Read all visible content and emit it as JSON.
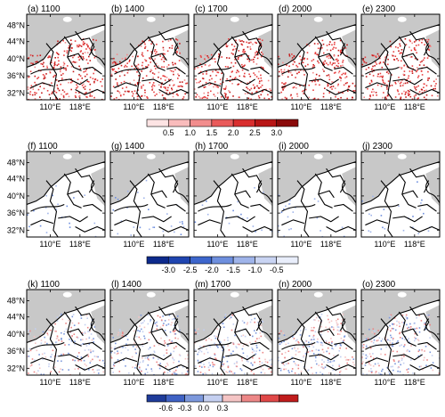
{
  "rows": [
    {
      "panels": [
        {
          "label": "(a) 1100"
        },
        {
          "label": "(b) 1400"
        },
        {
          "label": "(c) 1700"
        },
        {
          "label": "(d) 2000"
        },
        {
          "label": "(e) 2300"
        }
      ],
      "colorbar": {
        "ticks": [
          "0.5",
          "1.0",
          "1.5",
          "2.0",
          "2.5",
          "3.0"
        ],
        "colors": [
          "#fde4e4",
          "#f9bcbc",
          "#f28d8d",
          "#e95a5a",
          "#d92e2e",
          "#b81616",
          "#8a0a0a"
        ]
      },
      "dot_style": "red"
    },
    {
      "panels": [
        {
          "label": "(f) 1100"
        },
        {
          "label": "(g) 1400"
        },
        {
          "label": "(h) 1700"
        },
        {
          "label": "(i) 2000"
        },
        {
          "label": "(j) 2300"
        }
      ],
      "colorbar": {
        "ticks": [
          "-3.0",
          "-2.5",
          "-2.0",
          "-1.5",
          "-1.0",
          "-0.5"
        ],
        "colors": [
          "#0d2a8c",
          "#1f45b0",
          "#3d66cc",
          "#6e8fde",
          "#9fb4ea",
          "#c9d4f3",
          "#e9eefb"
        ]
      },
      "dot_style": "blue-sparse"
    },
    {
      "panels": [
        {
          "label": "(k) 1100"
        },
        {
          "label": "(l) 1400"
        },
        {
          "label": "(m) 1700"
        },
        {
          "label": "(n) 2000"
        },
        {
          "label": "(o) 2300"
        }
      ],
      "colorbar": {
        "ticks": [
          "-0.6",
          "-0.3",
          "0.0",
          "0.3"
        ],
        "colors": [
          "#1f3c9a",
          "#3f62c4",
          "#7c98dc",
          "#c4cff0",
          "#f4c4c4",
          "#ec8686",
          "#e04848",
          "#c01c1c"
        ]
      },
      "dot_style": "mixed"
    }
  ],
  "lat_labels": [
    "48°N",
    "44°N",
    "40°N",
    "36°N",
    "32°N"
  ],
  "lon_labels": [
    "110°E",
    "118°E"
  ],
  "colors": {
    "land_gray": "#c8c8c8",
    "boundary": "#000000",
    "panel_bg": "#ffffff"
  }
}
